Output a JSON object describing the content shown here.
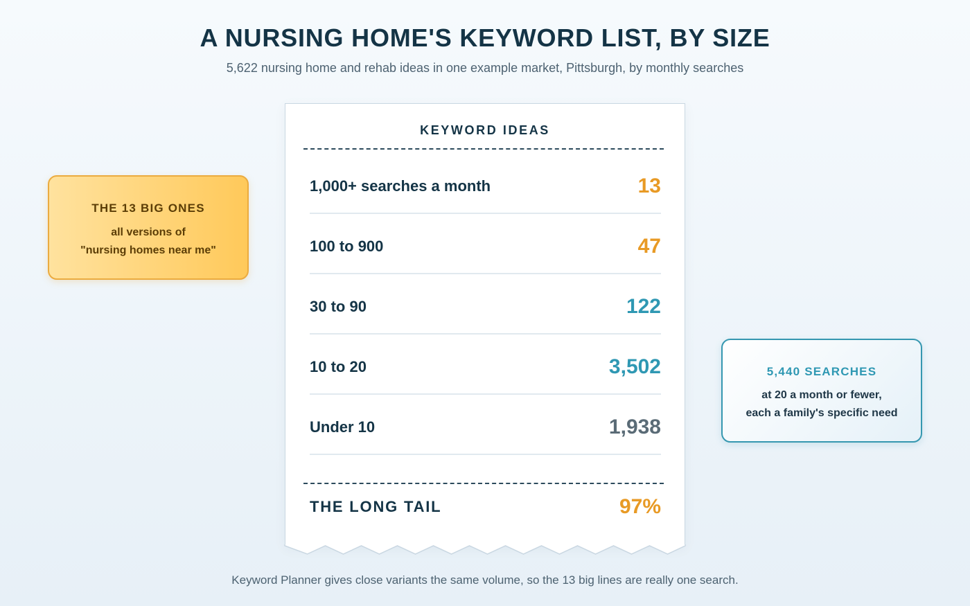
{
  "header": {
    "title": "A NURSING HOME'S KEYWORD LIST, BY SIZE",
    "subtitle": "5,622 nursing home and rehab ideas in one example market, Pittsburgh, by monthly searches"
  },
  "receipt": {
    "heading": "KEYWORD IDEAS",
    "rows": [
      {
        "label": "1,000+ searches a month",
        "value": "13",
        "color": "#e89a25"
      },
      {
        "label": "100 to 900",
        "value": "47",
        "color": "#e89a25"
      },
      {
        "label": "30 to 90",
        "value": "122",
        "color": "#2f98b3"
      },
      {
        "label": "10 to 20",
        "value": "3,502",
        "color": "#2f98b3"
      },
      {
        "label": "Under 10",
        "value": "1,938",
        "color": "#5a6b76"
      }
    ],
    "total": {
      "label": "THE LONG TAIL",
      "value": "97%",
      "color": "#e89a25"
    }
  },
  "callouts": {
    "left": {
      "title": "THE 13 BIG ONES",
      "line1": "all versions of",
      "line2": "\"nursing homes near me\""
    },
    "right": {
      "title": "5,440 SEARCHES",
      "line1": "at 20 a month or fewer,",
      "line2": "each a family's specific need"
    }
  },
  "footer": {
    "note": "Keyword Planner gives close variants the same volume, so the 13 big lines are really one search."
  }
}
